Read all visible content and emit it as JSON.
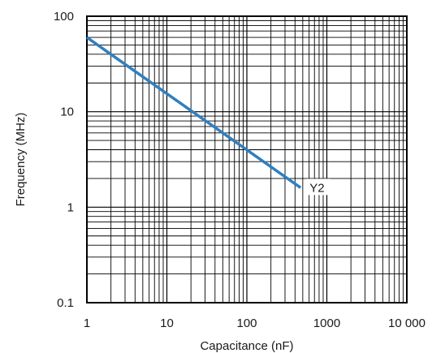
{
  "chart_data": {
    "type": "line",
    "title": "",
    "xlabel": "Capacitance (nF)",
    "ylabel": "Frequency (MHz)",
    "x_scale": "log",
    "y_scale": "log",
    "xlim": [
      1,
      10000
    ],
    "ylim": [
      0.1,
      100
    ],
    "grid": true,
    "x_ticks": [
      {
        "value": 1,
        "label": "1"
      },
      {
        "value": 10,
        "label": "10"
      },
      {
        "value": 100,
        "label": "100"
      },
      {
        "value": 1000,
        "label": "1000"
      },
      {
        "value": 10000,
        "label": "10 000"
      }
    ],
    "y_ticks": [
      {
        "value": 0.1,
        "label": "0.1"
      },
      {
        "value": 1,
        "label": "1"
      },
      {
        "value": 10,
        "label": "10"
      },
      {
        "value": 100,
        "label": "100"
      }
    ],
    "series": [
      {
        "name": "Y2",
        "color": "#2f7fc1",
        "x": [
          1,
          470
        ],
        "y": [
          60,
          1.6
        ]
      }
    ]
  }
}
